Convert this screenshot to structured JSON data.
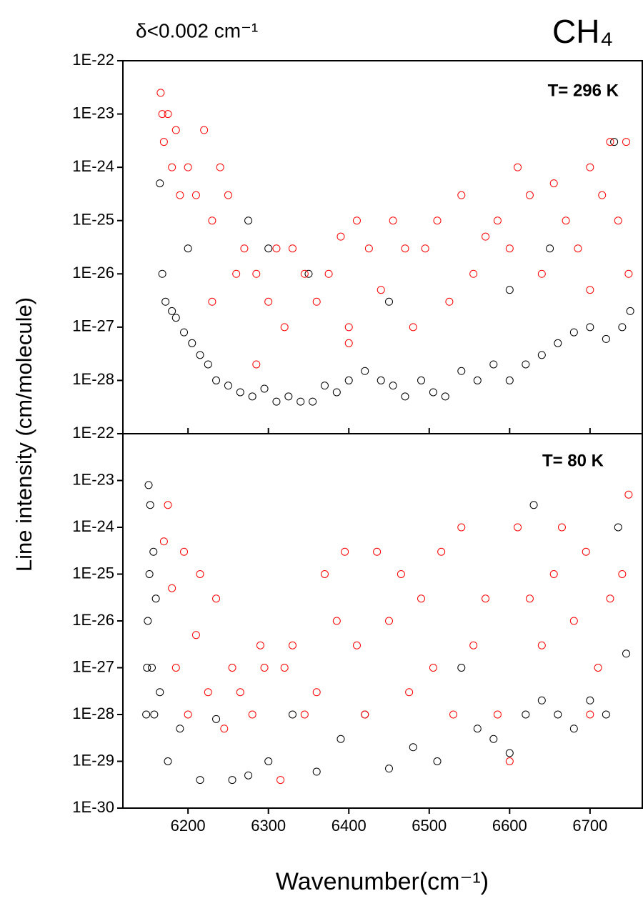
{
  "chart_data": [
    {
      "type": "scatter",
      "ylog": true,
      "annotations": [
        "δ<0.002 cm⁻¹",
        "CH₄",
        "T= 296 K"
      ],
      "ylabel": "Line intensity (cm/molecule)",
      "xlim": [
        6119,
        6765
      ],
      "xticks": [
        6200,
        6300,
        6400,
        6500,
        6600,
        6700
      ],
      "ylim": [
        1e-29,
        1e-22
      ],
      "yticks": [
        {
          "value": 1e-22,
          "label": "1E-22"
        },
        {
          "value": 1e-23,
          "label": "1E-23"
        },
        {
          "value": 1e-24,
          "label": "1E-24"
        },
        {
          "value": 1e-25,
          "label": "1E-25"
        },
        {
          "value": 1e-26,
          "label": "1E-26"
        },
        {
          "value": 1e-27,
          "label": "1E-27"
        },
        {
          "value": 1e-28,
          "label": "1E-28"
        }
      ],
      "series": [
        {
          "color": "#000000",
          "x": [
            6165,
            6168,
            6172,
            6180,
            6185,
            6195,
            6205,
            6215,
            6225,
            6235,
            6250,
            6265,
            6280,
            6295,
            6310,
            6325,
            6340,
            6355,
            6370,
            6385,
            6400,
            6420,
            6440,
            6455,
            6470,
            6490,
            6505,
            6520,
            6540,
            6560,
            6580,
            6600,
            6620,
            6640,
            6660,
            6680,
            6700,
            6720,
            6740,
            6750,
            6275,
            6350,
            6450,
            6600,
            6730,
            6650,
            6300,
            6200
          ],
          "values": [
            5e-25,
            1e-26,
            3e-27,
            2e-27,
            1.5e-27,
            8e-28,
            5e-28,
            3e-28,
            2e-28,
            1e-28,
            8e-29,
            6e-29,
            5e-29,
            7e-29,
            4e-29,
            5e-29,
            4e-29,
            4e-29,
            8e-29,
            6e-29,
            1e-28,
            1.5e-28,
            1e-28,
            8e-29,
            5e-29,
            1e-28,
            6e-29,
            5e-29,
            1.5e-28,
            1e-28,
            2e-28,
            1e-28,
            2e-28,
            3e-28,
            5e-28,
            8e-28,
            1e-27,
            6e-28,
            1e-27,
            2e-27,
            1e-25,
            1e-26,
            3e-27,
            5e-27,
            3e-24,
            3e-26,
            3e-26,
            3e-26
          ]
        },
        {
          "color": "#ff0000",
          "x": [
            6166,
            6168,
            6170,
            6175,
            6180,
            6185,
            6190,
            6200,
            6210,
            6220,
            6230,
            6240,
            6250,
            6260,
            6270,
            6285,
            6300,
            6310,
            6320,
            6330,
            6345,
            6360,
            6375,
            6390,
            6400,
            6410,
            6425,
            6440,
            6455,
            6470,
            6480,
            6495,
            6510,
            6525,
            6540,
            6555,
            6570,
            6585,
            6600,
            6610,
            6625,
            6640,
            6655,
            6670,
            6685,
            6700,
            6715,
            6725,
            6735,
            6745,
            6748,
            6285,
            6230,
            6400,
            6700
          ],
          "values": [
            2.5e-23,
            1e-23,
            3e-24,
            1e-23,
            1e-24,
            5e-24,
            3e-25,
            1e-24,
            3e-25,
            5e-24,
            1e-25,
            1e-24,
            3e-25,
            1e-26,
            3e-26,
            1e-26,
            3e-27,
            3e-26,
            1e-27,
            3e-26,
            1e-26,
            3e-27,
            1e-26,
            5e-26,
            1e-27,
            1e-25,
            3e-26,
            5e-27,
            1e-25,
            3e-26,
            1e-27,
            3e-26,
            1e-25,
            3e-27,
            3e-25,
            1e-26,
            5e-26,
            1e-25,
            3e-26,
            1e-24,
            3e-25,
            1e-26,
            5e-25,
            1e-25,
            3e-26,
            1e-24,
            3e-25,
            3e-24,
            1e-25,
            3e-24,
            1e-26,
            2e-28,
            3e-27,
            5e-28,
            5e-27
          ]
        }
      ]
    },
    {
      "type": "scatter",
      "ylog": true,
      "annotations": [
        "T= 80 K"
      ],
      "xlabel": "Wavenumber(cm⁻¹)",
      "xlim": [
        6119,
        6765
      ],
      "xticks": [
        6200,
        6300,
        6400,
        6500,
        6600,
        6700
      ],
      "ylim": [
        1e-30,
        1e-22
      ],
      "yticks": [
        {
          "value": 1e-22,
          "label": "1E-22"
        },
        {
          "value": 1e-23,
          "label": "1E-23"
        },
        {
          "value": 1e-24,
          "label": "1E-24"
        },
        {
          "value": 1e-25,
          "label": "1E-25"
        },
        {
          "value": 1e-26,
          "label": "1E-26"
        },
        {
          "value": 1e-27,
          "label": "1E-27"
        },
        {
          "value": 1e-28,
          "label": "1E-28"
        },
        {
          "value": 1e-29,
          "label": "1E-29"
        },
        {
          "value": 1e-30,
          "label": "1E-30"
        }
      ],
      "series": [
        {
          "color": "#000000",
          "x": [
            6148,
            6149,
            6150,
            6151,
            6152,
            6153,
            6155,
            6157,
            6158,
            6160,
            6165,
            6175,
            6190,
            6215,
            6235,
            6255,
            6275,
            6300,
            6330,
            6360,
            6390,
            6420,
            6450,
            6480,
            6510,
            6540,
            6560,
            6580,
            6600,
            6620,
            6640,
            6660,
            6680,
            6700,
            6720,
            6735,
            6745,
            6630
          ],
          "values": [
            1e-28,
            1e-27,
            1e-26,
            8e-24,
            1e-25,
            3e-24,
            1e-27,
            3e-25,
            1e-28,
            3e-26,
            3e-28,
            1e-29,
            5e-29,
            4e-30,
            8e-29,
            4e-30,
            5e-30,
            1e-29,
            1e-28,
            6e-30,
            3e-29,
            1e-28,
            7e-30,
            2e-29,
            1e-29,
            1e-27,
            5e-29,
            3e-29,
            1.5e-29,
            1e-28,
            2e-28,
            1e-28,
            5e-29,
            2e-28,
            1e-28,
            1e-24,
            2e-27,
            3e-24
          ]
        },
        {
          "color": "#ff0000",
          "x": [
            6170,
            6175,
            6180,
            6185,
            6195,
            6200,
            6210,
            6215,
            6225,
            6235,
            6245,
            6255,
            6265,
            6280,
            6290,
            6295,
            6315,
            6320,
            6330,
            6345,
            6360,
            6370,
            6385,
            6395,
            6410,
            6420,
            6435,
            6450,
            6465,
            6475,
            6490,
            6505,
            6515,
            6530,
            6540,
            6555,
            6570,
            6585,
            6600,
            6610,
            6625,
            6640,
            6655,
            6665,
            6680,
            6695,
            6710,
            6725,
            6740,
            6748,
            6700
          ],
          "values": [
            5e-25,
            3e-24,
            5e-26,
            1e-27,
            3e-25,
            1e-28,
            5e-27,
            1e-25,
            3e-28,
            3e-26,
            5e-29,
            1e-27,
            3e-28,
            1e-28,
            3e-27,
            1e-27,
            4e-30,
            1e-27,
            3e-27,
            1e-28,
            3e-28,
            1e-25,
            1e-26,
            3e-25,
            3e-27,
            1e-28,
            3e-25,
            1e-26,
            1e-25,
            3e-28,
            3e-26,
            1e-27,
            3e-25,
            1e-28,
            1e-24,
            3e-27,
            3e-26,
            1e-28,
            1e-29,
            1e-24,
            3e-26,
            3e-27,
            1e-25,
            1e-24,
            1e-26,
            3e-25,
            1e-27,
            3e-26,
            1e-25,
            5e-24,
            1e-28
          ]
        }
      ]
    }
  ]
}
